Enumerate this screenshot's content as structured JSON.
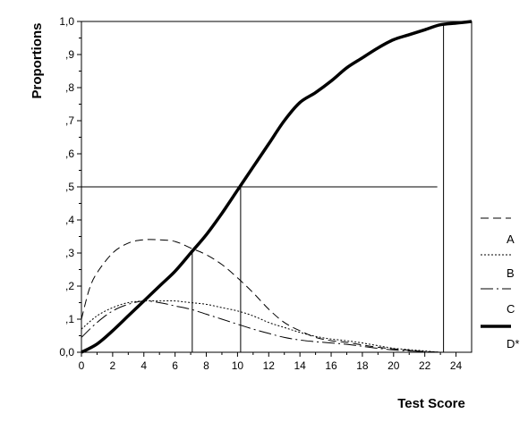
{
  "chart_data": {
    "type": "line",
    "title": "",
    "xlabel": "Test Score",
    "ylabel": "Proportions",
    "xlim": [
      0,
      25
    ],
    "ylim": [
      0,
      1.0
    ],
    "x_ticks": [
      0,
      2,
      4,
      6,
      8,
      10,
      12,
      14,
      16,
      18,
      20,
      22,
      24
    ],
    "x_tick_labels": [
      "0",
      "2",
      "4",
      "6",
      "8",
      "10",
      "12",
      "14",
      "16",
      "18",
      "20",
      "22",
      "24"
    ],
    "y_ticks": [
      0,
      0.1,
      0.2,
      0.3,
      0.4,
      0.5,
      0.6,
      0.7,
      0.8,
      0.9,
      1.0
    ],
    "y_tick_labels": [
      "0,0",
      ",1",
      ",2",
      ",3",
      ",4",
      ",5",
      ",6",
      ",7",
      ",8",
      ",9",
      "1,0"
    ],
    "grid": false,
    "legend_position": "right",
    "series": [
      {
        "name": "A",
        "style": "long-dash",
        "x": [
          0,
          0.5,
          1,
          2,
          3,
          4,
          5,
          6,
          7,
          8,
          9,
          10,
          11,
          12,
          13,
          14,
          15,
          16,
          17,
          18,
          19,
          20,
          21,
          22,
          23
        ],
        "y": [
          0.1,
          0.19,
          0.24,
          0.3,
          0.33,
          0.34,
          0.34,
          0.335,
          0.315,
          0.295,
          0.265,
          0.225,
          0.18,
          0.13,
          0.09,
          0.065,
          0.045,
          0.035,
          0.03,
          0.022,
          0.015,
          0.01,
          0.006,
          0.002,
          0.0
        ]
      },
      {
        "name": "B",
        "style": "dotted",
        "x": [
          0,
          1,
          2,
          3,
          4,
          5,
          6,
          7,
          8,
          9,
          10,
          11,
          12,
          13,
          14,
          15,
          16,
          17,
          18,
          19,
          20,
          21,
          22,
          23
        ],
        "y": [
          0.07,
          0.11,
          0.135,
          0.15,
          0.155,
          0.155,
          0.155,
          0.15,
          0.145,
          0.135,
          0.125,
          0.11,
          0.09,
          0.075,
          0.06,
          0.048,
          0.04,
          0.035,
          0.028,
          0.02,
          0.012,
          0.008,
          0.004,
          0.0
        ]
      },
      {
        "name": "C",
        "style": "dash-dot",
        "x": [
          0,
          1,
          2,
          3,
          4,
          5,
          6,
          7,
          8,
          9,
          10,
          11,
          12,
          13,
          14,
          15,
          16,
          17,
          18,
          19,
          20,
          21,
          22,
          23
        ],
        "y": [
          0.045,
          0.09,
          0.125,
          0.145,
          0.155,
          0.15,
          0.14,
          0.13,
          0.115,
          0.1,
          0.085,
          0.07,
          0.057,
          0.045,
          0.037,
          0.032,
          0.028,
          0.024,
          0.018,
          0.012,
          0.007,
          0.004,
          0.002,
          0.0
        ]
      },
      {
        "name": "D*",
        "style": "thick-solid",
        "x": [
          0,
          1,
          2,
          3,
          4,
          5,
          6,
          7,
          8,
          9,
          10,
          11,
          12,
          13,
          14,
          15,
          16,
          17,
          18,
          19,
          20,
          21,
          22,
          23,
          24,
          25
        ],
        "y": [
          0.0,
          0.025,
          0.065,
          0.11,
          0.155,
          0.2,
          0.245,
          0.3,
          0.355,
          0.42,
          0.49,
          0.56,
          0.63,
          0.7,
          0.755,
          0.785,
          0.82,
          0.86,
          0.89,
          0.92,
          0.945,
          0.96,
          0.975,
          0.99,
          0.995,
          1.0
        ]
      }
    ],
    "reference_lines": [
      {
        "kind": "horizontal",
        "y": 0.5,
        "x_from": 0,
        "x_to": 22.8
      },
      {
        "kind": "vertical",
        "x": 7.1,
        "y_from": 0,
        "y_to": 0.31
      },
      {
        "kind": "vertical",
        "x": 10.2,
        "y_from": 0,
        "y_to": 0.5
      },
      {
        "kind": "vertical",
        "x": 23.2,
        "y_from": 0,
        "y_to": 0.99
      }
    ]
  }
}
